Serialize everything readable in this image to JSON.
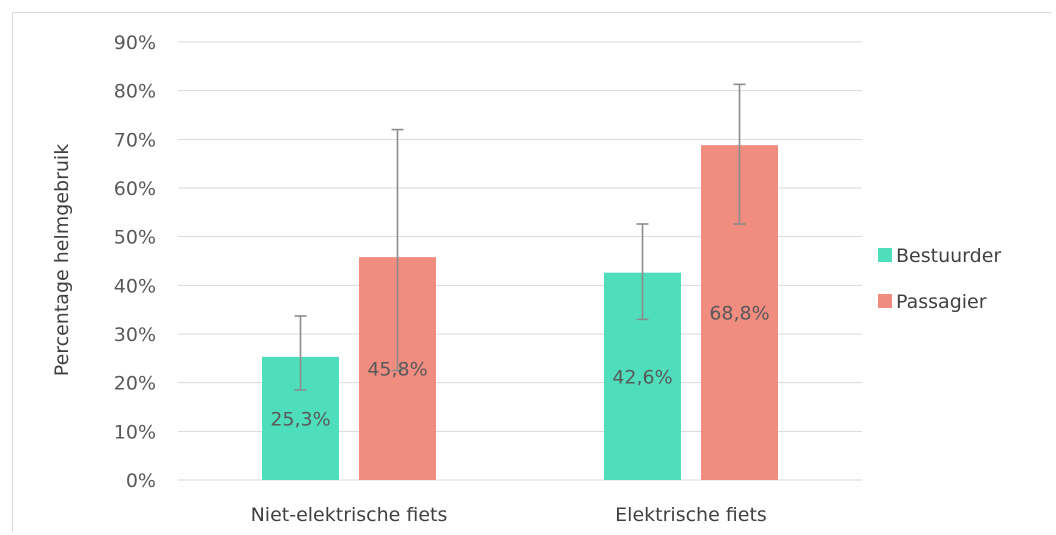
{
  "chart_data": {
    "type": "bar",
    "title": "",
    "xlabel": "",
    "ylabel": "Percentage helmgebruik",
    "ylim": [
      0,
      90
    ],
    "y_ticks": [
      0,
      10,
      20,
      30,
      40,
      50,
      60,
      70,
      80,
      90
    ],
    "y_tick_suffix": "%",
    "grid": true,
    "legend_position": "right",
    "categories": [
      "Niet-elektrische fiets",
      "Elektrische fiets"
    ],
    "series": [
      {
        "name": "Bestuurder",
        "color": "#4fdebb",
        "values": [
          25.3,
          42.6
        ],
        "labels": [
          "25,3%",
          "42,6%"
        ],
        "error_low": [
          18.5,
          33.0
        ],
        "error_high": [
          33.7,
          52.6
        ]
      },
      {
        "name": "Passagier",
        "color": "#f08c80",
        "values": [
          45.8,
          68.8
        ],
        "labels": [
          "45,8%",
          "68,8%"
        ],
        "error_low": [
          22.5,
          52.6
        ],
        "error_high": [
          72.0,
          81.3
        ]
      }
    ]
  }
}
